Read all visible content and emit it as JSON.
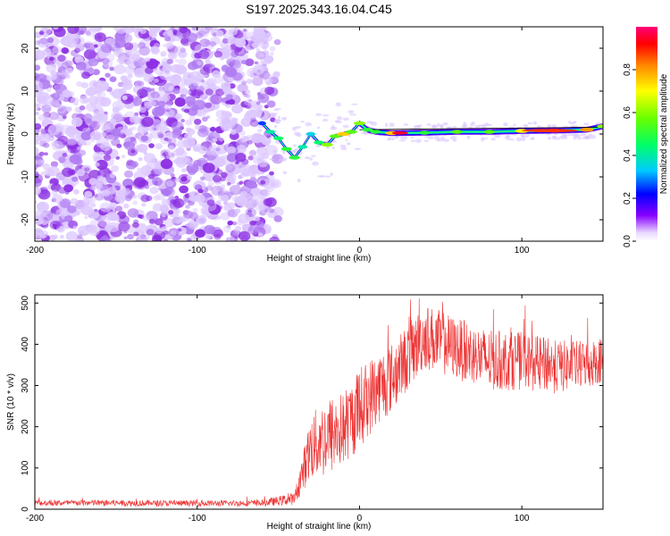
{
  "figure_title": "S197.2025.343.16.04.C45",
  "colors": {
    "snr_line": "#ee3333",
    "scatter": "#8a2be2",
    "frame": "#000000"
  },
  "chart_data": [
    {
      "type": "heatmap",
      "title": "S197.2025.343.16.04.C45",
      "xlabel": "Height of straight line (km)",
      "ylabel": "Frequency (Hz)",
      "xlim": [
        -200,
        150
      ],
      "ylim": [
        -25,
        25
      ],
      "xticks": [
        -200,
        -100,
        0,
        100
      ],
      "yticks": [
        20,
        10,
        0,
        -10,
        -20
      ],
      "colorbar": {
        "label": "Normalized spectral amplitude",
        "range": [
          0.0,
          1.0
        ],
        "ticks": [
          0.0,
          0.2,
          0.4,
          0.6,
          0.8
        ],
        "tick_labels": [
          "0.0",
          "0.2",
          "0.4",
          "0.6",
          "0.8"
        ]
      },
      "noise_region_x": [
        -200,
        -60
      ],
      "noise_amplitude": 0.1,
      "signal_band": {
        "x": [
          -60,
          -55,
          -50,
          -45,
          -40,
          -35,
          -30,
          -25,
          -20,
          -15,
          -10,
          -5,
          0,
          5,
          10,
          20,
          40,
          60,
          80,
          100,
          120,
          140,
          150
        ],
        "freq": [
          2.5,
          0.5,
          -1.0,
          -3.5,
          -5.5,
          -3.0,
          0.0,
          -2.0,
          -2.5,
          -0.5,
          0.0,
          0.5,
          2.5,
          1.0,
          0.5,
          0.2,
          0.3,
          0.5,
          0.5,
          0.7,
          0.8,
          1.0,
          1.8
        ],
        "amplitude": [
          0.25,
          0.4,
          0.45,
          0.5,
          0.5,
          0.4,
          0.35,
          0.45,
          0.6,
          0.55,
          0.75,
          0.55,
          0.6,
          0.5,
          0.5,
          0.75,
          0.5,
          0.55,
          0.55,
          0.7,
          0.9,
          0.8,
          0.6
        ]
      }
    },
    {
      "type": "line",
      "xlabel": "Height of straight line (km)",
      "ylabel": "SNR (10 * v/v)",
      "xlim": [
        -200,
        150
      ],
      "ylim": [
        0,
        520
      ],
      "xticks": [
        -200,
        -100,
        0,
        100
      ],
      "yticks": [
        0,
        100,
        200,
        300,
        400,
        500
      ],
      "series": [
        {
          "name": "SNR",
          "envelope_x": [
            -200,
            -150,
            -100,
            -60,
            -40,
            -35,
            -30,
            -20,
            -10,
            0,
            10,
            20,
            30,
            40,
            60,
            80,
            100,
            120,
            140,
            150
          ],
          "envelope_mean": [
            15,
            15,
            14,
            15,
            25,
            90,
            150,
            175,
            195,
            245,
            290,
            320,
            370,
            420,
            390,
            360,
            360,
            345,
            350,
            365
          ],
          "envelope_halfwidth": [
            7,
            8,
            7,
            8,
            15,
            45,
            80,
            100,
            90,
            100,
            90,
            85,
            80,
            80,
            75,
            75,
            70,
            65,
            60,
            55
          ]
        }
      ]
    }
  ]
}
